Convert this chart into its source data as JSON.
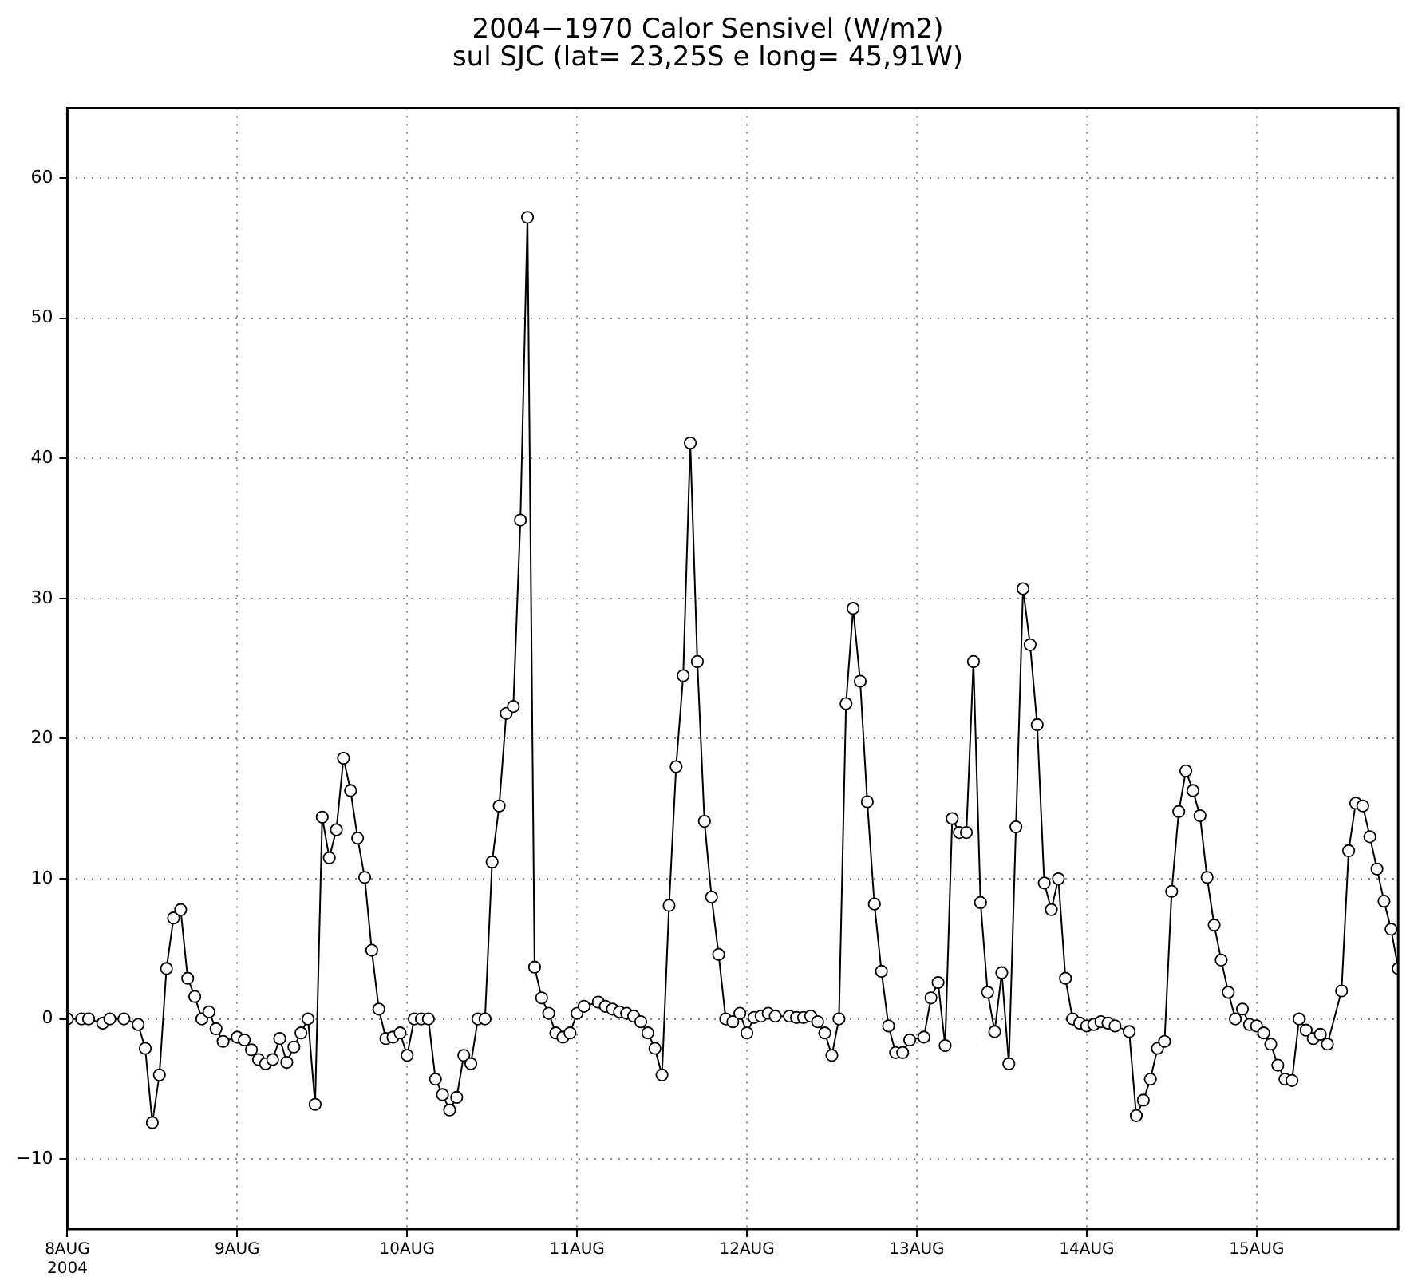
{
  "chart_data": {
    "type": "line",
    "title": "2004−1970 Calor Sensivel (W/m2)",
    "subtitle": "sul SJC (lat= 23,25S e long= 45,91W)",
    "xlim": [
      "2004-08-08T00:00",
      "2004-08-15T20:00"
    ],
    "xticks": [
      {
        "value": "2004-08-08",
        "label": "8AUG\n2004"
      },
      {
        "value": "2004-08-09",
        "label": "9AUG"
      },
      {
        "value": "2004-08-10",
        "label": "10AUG"
      },
      {
        "value": "2004-08-11",
        "label": "11AUG"
      },
      {
        "value": "2004-08-12",
        "label": "12AUG"
      },
      {
        "value": "2004-08-13",
        "label": "13AUG"
      },
      {
        "value": "2004-08-14",
        "label": "14AUG"
      },
      {
        "value": "2004-08-15",
        "label": "15AUG"
      }
    ],
    "ylim": [
      -15,
      65
    ],
    "yticks": [
      -10,
      0,
      10,
      20,
      30,
      40,
      50,
      60
    ],
    "grid": true,
    "legend": false,
    "marker": "circle",
    "line_style": "solid",
    "series": [
      {
        "color": "#000000",
        "x": [
          "2004-08-08T00:00",
          "2004-08-08T02:00",
          "2004-08-08T03:00",
          "2004-08-08T05:00",
          "2004-08-08T06:00",
          "2004-08-08T08:00",
          "2004-08-08T10:00",
          "2004-08-08T11:00",
          "2004-08-08T12:00",
          "2004-08-08T13:00",
          "2004-08-08T14:00",
          "2004-08-08T15:00",
          "2004-08-08T16:00",
          "2004-08-08T17:00",
          "2004-08-08T18:00",
          "2004-08-08T19:00",
          "2004-08-08T20:00",
          "2004-08-08T21:00",
          "2004-08-08T22:00",
          "2004-08-09T00:00",
          "2004-08-09T01:00",
          "2004-08-09T02:00",
          "2004-08-09T03:00",
          "2004-08-09T04:00",
          "2004-08-09T05:00",
          "2004-08-09T06:00",
          "2004-08-09T07:00",
          "2004-08-09T08:00",
          "2004-08-09T09:00",
          "2004-08-09T10:00",
          "2004-08-09T11:00",
          "2004-08-09T12:00",
          "2004-08-09T13:00",
          "2004-08-09T14:00",
          "2004-08-09T15:00",
          "2004-08-09T16:00",
          "2004-08-09T17:00",
          "2004-08-09T18:00",
          "2004-08-09T19:00",
          "2004-08-09T20:00",
          "2004-08-09T21:00",
          "2004-08-09T22:00",
          "2004-08-09T23:00",
          "2004-08-10T00:00",
          "2004-08-10T01:00",
          "2004-08-10T02:00",
          "2004-08-10T03:00",
          "2004-08-10T04:00",
          "2004-08-10T05:00",
          "2004-08-10T06:00",
          "2004-08-10T07:00",
          "2004-08-10T08:00",
          "2004-08-10T09:00",
          "2004-08-10T10:00",
          "2004-08-10T11:00",
          "2004-08-10T12:00",
          "2004-08-10T13:00",
          "2004-08-10T14:00",
          "2004-08-10T15:00",
          "2004-08-10T16:00",
          "2004-08-10T17:00",
          "2004-08-10T18:00",
          "2004-08-10T19:00",
          "2004-08-10T20:00",
          "2004-08-10T21:00",
          "2004-08-10T22:00",
          "2004-08-10T23:00",
          "2004-08-11T00:00",
          "2004-08-11T01:00",
          "2004-08-11T03:00",
          "2004-08-11T04:00",
          "2004-08-11T05:00",
          "2004-08-11T06:00",
          "2004-08-11T07:00",
          "2004-08-11T08:00",
          "2004-08-11T09:00",
          "2004-08-11T10:00",
          "2004-08-11T11:00",
          "2004-08-11T12:00",
          "2004-08-11T13:00",
          "2004-08-11T14:00",
          "2004-08-11T15:00",
          "2004-08-11T16:00",
          "2004-08-11T17:00",
          "2004-08-11T18:00",
          "2004-08-11T19:00",
          "2004-08-11T20:00",
          "2004-08-11T21:00",
          "2004-08-11T22:00",
          "2004-08-11T23:00",
          "2004-08-12T00:00",
          "2004-08-12T01:00",
          "2004-08-12T02:00",
          "2004-08-12T03:00",
          "2004-08-12T04:00",
          "2004-08-12T06:00",
          "2004-08-12T07:00",
          "2004-08-12T08:00",
          "2004-08-12T09:00",
          "2004-08-12T10:00",
          "2004-08-12T11:00",
          "2004-08-12T12:00",
          "2004-08-12T13:00",
          "2004-08-12T14:00",
          "2004-08-12T15:00",
          "2004-08-12T16:00",
          "2004-08-12T17:00",
          "2004-08-12T18:00",
          "2004-08-12T19:00",
          "2004-08-12T20:00",
          "2004-08-12T21:00",
          "2004-08-12T22:00",
          "2004-08-12T23:00",
          "2004-08-13T01:00",
          "2004-08-13T02:00",
          "2004-08-13T03:00",
          "2004-08-13T04:00",
          "2004-08-13T05:00",
          "2004-08-13T06:00",
          "2004-08-13T07:00",
          "2004-08-13T08:00",
          "2004-08-13T09:00",
          "2004-08-13T10:00",
          "2004-08-13T11:00",
          "2004-08-13T12:00",
          "2004-08-13T13:00",
          "2004-08-13T14:00",
          "2004-08-13T15:00",
          "2004-08-13T16:00",
          "2004-08-13T17:00",
          "2004-08-13T18:00",
          "2004-08-13T19:00",
          "2004-08-13T20:00",
          "2004-08-13T21:00",
          "2004-08-13T22:00",
          "2004-08-13T23:00",
          "2004-08-14T00:00",
          "2004-08-14T01:00",
          "2004-08-14T02:00",
          "2004-08-14T03:00",
          "2004-08-14T04:00",
          "2004-08-14T06:00",
          "2004-08-14T07:00",
          "2004-08-14T08:00",
          "2004-08-14T09:00",
          "2004-08-14T10:00",
          "2004-08-14T11:00",
          "2004-08-14T12:00",
          "2004-08-14T13:00",
          "2004-08-14T14:00",
          "2004-08-14T15:00",
          "2004-08-14T16:00",
          "2004-08-14T17:00",
          "2004-08-14T18:00",
          "2004-08-14T19:00",
          "2004-08-14T20:00",
          "2004-08-14T21:00",
          "2004-08-14T22:00",
          "2004-08-14T23:00",
          "2004-08-15T00:00",
          "2004-08-15T01:00",
          "2004-08-15T02:00",
          "2004-08-15T03:00",
          "2004-08-15T04:00",
          "2004-08-15T05:00",
          "2004-08-15T06:00",
          "2004-08-15T07:00",
          "2004-08-15T08:00",
          "2004-08-15T09:00",
          "2004-08-15T10:00",
          "2004-08-15T12:00",
          "2004-08-15T13:00",
          "2004-08-15T14:00",
          "2004-08-15T15:00",
          "2004-08-15T16:00",
          "2004-08-15T17:00",
          "2004-08-15T18:00",
          "2004-08-15T19:00",
          "2004-08-15T20:00"
        ],
        "values": [
          0,
          0,
          0,
          -0.3,
          0,
          0,
          -0.4,
          -2.1,
          -7.4,
          -4,
          3.6,
          7.2,
          7.8,
          2.9,
          1.6,
          0,
          0.5,
          -0.7,
          -1.6,
          -1.3,
          -1.5,
          -2.2,
          -2.9,
          -3.2,
          -2.9,
          -1.4,
          -3.1,
          -2,
          -1,
          0,
          -6.1,
          14.4,
          11.5,
          13.5,
          18.6,
          16.3,
          12.9,
          10.1,
          4.9,
          0.7,
          -1.4,
          -1.3,
          -1,
          -2.6,
          0,
          0,
          0,
          -4.3,
          -5.4,
          -6.5,
          -5.6,
          -2.6,
          -3.2,
          0,
          0,
          11.2,
          15.2,
          21.8,
          22.3,
          35.6,
          57.2,
          3.7,
          1.5,
          0.4,
          -1,
          -1.3,
          -1,
          0.4,
          0.9,
          1.2,
          0.9,
          0.7,
          0.5,
          0.4,
          0.2,
          -0.2,
          -1,
          -2.1,
          -4,
          8.1,
          18,
          24.5,
          41.1,
          25.5,
          14.1,
          8.7,
          4.6,
          0,
          -0.2,
          0.4,
          -1,
          0.1,
          0.2,
          0.4,
          0.2,
          0.2,
          0.1,
          0.1,
          0.2,
          -0.2,
          -1,
          -2.6,
          0,
          22.5,
          29.3,
          24.1,
          15.5,
          8.2,
          3.4,
          -0.5,
          -2.4,
          -2.4,
          -1.5,
          -1.3,
          1.5,
          2.6,
          -1.9,
          14.3,
          13.3,
          13.3,
          25.5,
          8.3,
          1.9,
          -0.9,
          3.3,
          -3.2,
          13.7,
          30.7,
          26.7,
          21,
          9.7,
          7.8,
          10,
          2.9,
          0,
          -0.3,
          -0.5,
          -0.4,
          -0.2,
          -0.3,
          -0.5,
          -0.9,
          -6.9,
          -5.8,
          -4.3,
          -2.1,
          -1.6,
          9.1,
          14.8,
          17.7,
          16.3,
          14.5,
          10.1,
          6.7,
          4.2,
          1.9,
          0,
          0.7,
          -0.4,
          -0.5,
          -1,
          -1.8,
          -3.3,
          -4.3,
          -4.4,
          0,
          -0.8,
          -1.4,
          -1.1,
          -1.8,
          2,
          12,
          15.4,
          15.2,
          13,
          10.7,
          8.4,
          6.4,
          3.6
        ]
      }
    ]
  }
}
